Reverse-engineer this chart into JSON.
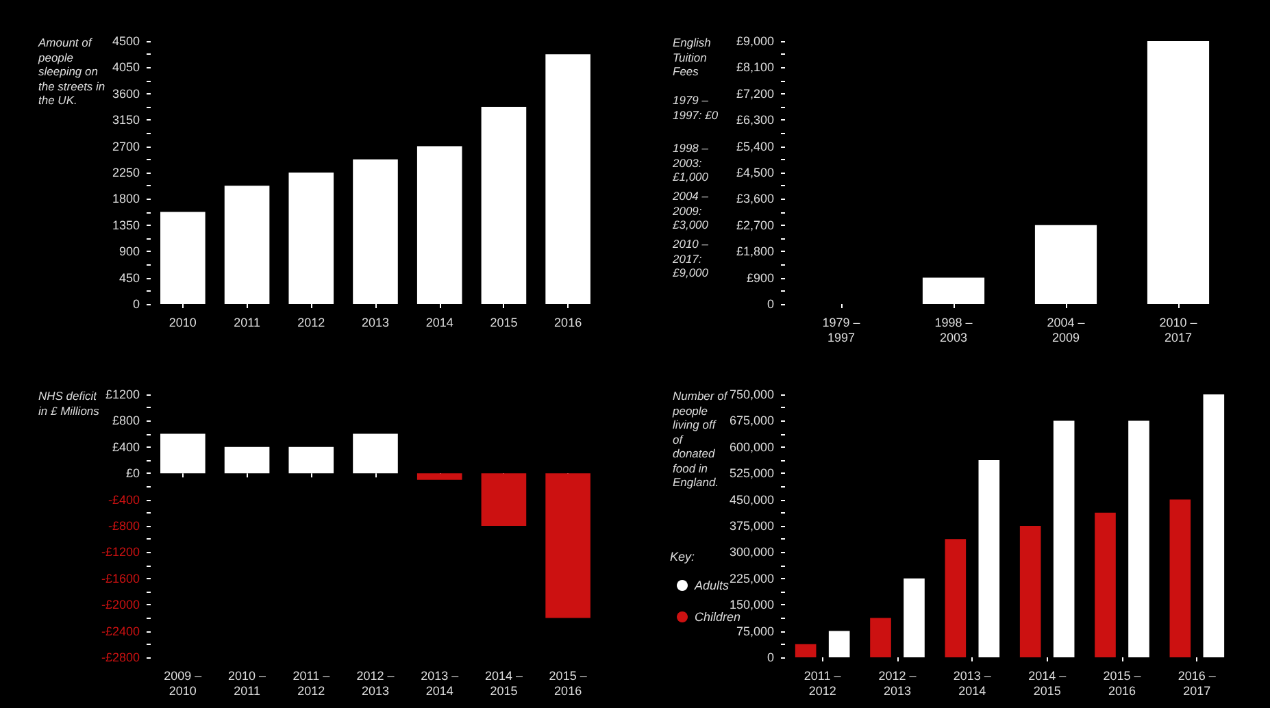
{
  "chart_data": [
    {
      "type": "bar",
      "title": "Amount of people sleeping on the streets in the UK.",
      "categories": [
        "2010",
        "2011",
        "2012",
        "2013",
        "2014",
        "2015",
        "2016"
      ],
      "values": [
        1575,
        2025,
        2250,
        2475,
        2700,
        3375,
        4275
      ],
      "color": "#ffffff",
      "ylim": [
        0,
        4500
      ],
      "yticks": [
        0,
        {
          "value": 225,
          "label": null
        },
        450,
        {
          "value": 675,
          "label": null
        },
        900,
        {
          "value": 1125,
          "label": null
        },
        1350,
        {
          "value": 1575,
          "label": null
        },
        1800,
        {
          "value": 2025,
          "label": null
        },
        2250,
        {
          "value": 2475,
          "label": null
        },
        2700,
        {
          "value": 2925,
          "label": null
        },
        3150,
        {
          "value": 3375,
          "label": null
        },
        3600,
        {
          "value": 3825,
          "label": null
        },
        4050,
        {
          "value": 4275,
          "label": null
        },
        4500
      ],
      "grid": false,
      "legend": false
    },
    {
      "type": "bar",
      "title": "English Tuition Fees",
      "annotations": [
        "1979 – 1997: £0",
        "1998 – 2003: £1,000",
        "2004 – 2009: £3,000",
        "2010 – 2017: £9,000"
      ],
      "categories": [
        "1979 –\n1997",
        "1998 –\n2003",
        "2004 –\n2009",
        "2010 –\n2017"
      ],
      "values": [
        0,
        900,
        2700,
        9000
      ],
      "color": "#ffffff",
      "ylim": [
        0,
        9000
      ],
      "yticks": [
        0,
        {
          "value": 450,
          "label": null
        },
        {
          "value": 900,
          "label": "£900"
        },
        {
          "value": 1350,
          "label": null
        },
        {
          "value": 1800,
          "label": "£1,800"
        },
        {
          "value": 2250,
          "label": null
        },
        {
          "value": 2700,
          "label": "£2,700"
        },
        {
          "value": 3150,
          "label": null
        },
        {
          "value": 3600,
          "label": "£3,600"
        },
        {
          "value": 4050,
          "label": null
        },
        {
          "value": 4500,
          "label": "£4,500"
        },
        {
          "value": 4950,
          "label": null
        },
        {
          "value": 5400,
          "label": "£5,400"
        },
        {
          "value": 5850,
          "label": null
        },
        {
          "value": 6300,
          "label": "£6,300"
        },
        {
          "value": 6750,
          "label": null
        },
        {
          "value": 7200,
          "label": "£7,200"
        },
        {
          "value": 7650,
          "label": null
        },
        {
          "value": 8100,
          "label": "£8,100"
        },
        {
          "value": 8550,
          "label": null
        },
        {
          "value": 9000,
          "label": "£9,000"
        }
      ],
      "grid": false,
      "legend": false
    },
    {
      "type": "bar",
      "title": "NHS deficit in £ Millions",
      "categories": [
        "2009 –\n2010",
        "2010 –\n2011",
        "2011 –\n2012",
        "2012 –\n2013",
        "2013 –\n2014",
        "2014 –\n2015",
        "2015 –\n2016"
      ],
      "values": [
        600,
        400,
        400,
        600,
        -100,
        -800,
        -2200
      ],
      "colors": [
        "#ffffff",
        "#ffffff",
        "#ffffff",
        "#ffffff",
        "#cc1111",
        "#cc1111",
        "#cc1111"
      ],
      "ylim": [
        -2800,
        1200
      ],
      "yticks": [
        {
          "value": -2800,
          "label": "-£2800"
        },
        {
          "value": -2600,
          "label": null
        },
        {
          "value": -2400,
          "label": "-£2400"
        },
        {
          "value": -2200,
          "label": null
        },
        {
          "value": -2000,
          "label": "-£2000"
        },
        {
          "value": -1800,
          "label": null
        },
        {
          "value": -1600,
          "label": "-£1600"
        },
        {
          "value": -1400,
          "label": null
        },
        {
          "value": -1200,
          "label": "-£1200"
        },
        {
          "value": -1000,
          "label": null
        },
        {
          "value": -800,
          "label": "-£800"
        },
        {
          "value": -600,
          "label": null
        },
        {
          "value": -400,
          "label": "-£400"
        },
        {
          "value": -200,
          "label": null
        },
        {
          "value": 0,
          "label": "£0"
        },
        {
          "value": 200,
          "label": null
        },
        {
          "value": 400,
          "label": "£400"
        },
        {
          "value": 600,
          "label": null
        },
        {
          "value": 800,
          "label": "£800"
        },
        {
          "value": 1000,
          "label": null
        },
        {
          "value": 1200,
          "label": "£1200"
        }
      ],
      "grid": false,
      "legend": false
    },
    {
      "type": "bar",
      "title": "Number of people living off of donated food in England.",
      "legend_title": "Key:",
      "categories": [
        "2011 –\n2012",
        "2012 –\n2013",
        "2013 –\n2014",
        "2014 –\n2015",
        "2015 –\n2016",
        "2016 –\n2017"
      ],
      "series": [
        {
          "name": "Children",
          "color": "#cc1111",
          "values": [
            37500,
            112500,
            337500,
            375000,
            412500,
            450000
          ]
        },
        {
          "name": "Adults",
          "color": "#ffffff",
          "values": [
            75000,
            225000,
            562500,
            675000,
            675000,
            750000
          ]
        }
      ],
      "ylim": [
        0,
        750000
      ],
      "yticks": [
        {
          "value": 0,
          "label": "0"
        },
        {
          "value": 37500,
          "label": null
        },
        {
          "value": 75000,
          "label": "75,000"
        },
        {
          "value": 112500,
          "label": null
        },
        {
          "value": 150000,
          "label": "150,000"
        },
        {
          "value": 187500,
          "label": null
        },
        {
          "value": 225000,
          "label": "225,000"
        },
        {
          "value": 262500,
          "label": null
        },
        {
          "value": 300000,
          "label": "300,000"
        },
        {
          "value": 337500,
          "label": null
        },
        {
          "value": 375000,
          "label": "375,000"
        },
        {
          "value": 412500,
          "label": null
        },
        {
          "value": 450000,
          "label": "450,000"
        },
        {
          "value": 487500,
          "label": null
        },
        {
          "value": 525000,
          "label": "525,000"
        },
        {
          "value": 562500,
          "label": null
        },
        {
          "value": 600000,
          "label": "600,000"
        },
        {
          "value": 637500,
          "label": null
        },
        {
          "value": 675000,
          "label": "675,000"
        },
        {
          "value": 712500,
          "label": null
        },
        {
          "value": 750000,
          "label": "750,000"
        }
      ],
      "grid": false,
      "legend": "left"
    }
  ]
}
